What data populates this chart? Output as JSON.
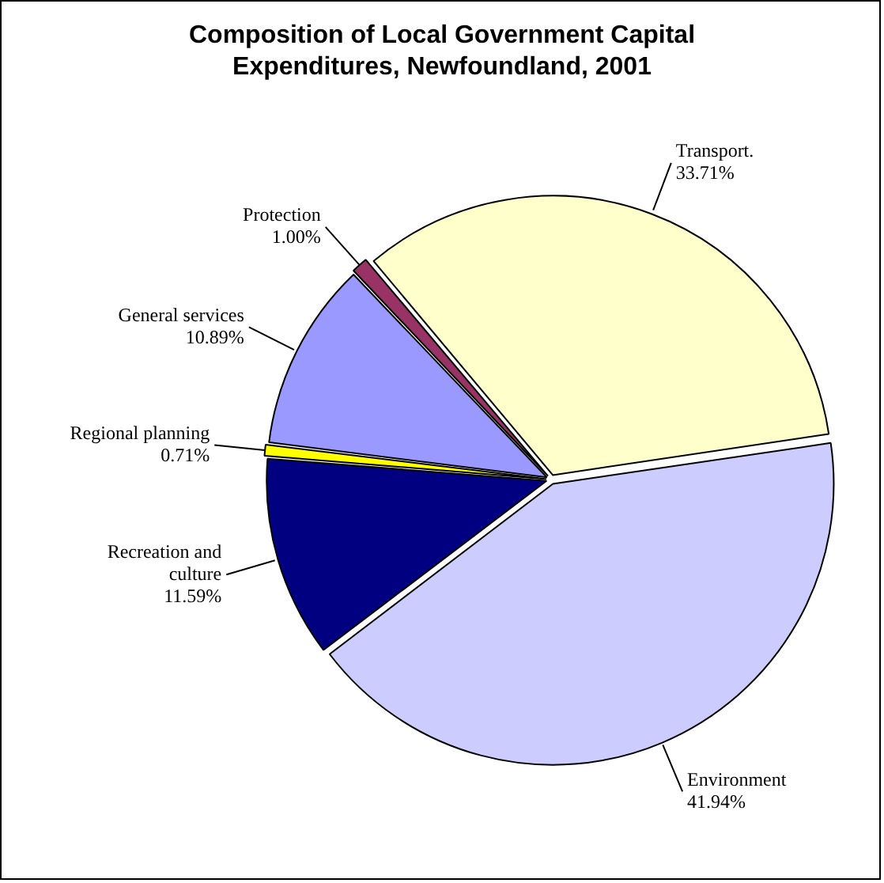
{
  "chart_data": {
    "type": "pie",
    "title": "Composition of Local Government Capital Expenditures, Newfoundland, 2001",
    "categories": [
      "Transport.",
      "Environment",
      "Recreation and culture",
      "Regional planning",
      "General services",
      "Protection"
    ],
    "values": [
      33.71,
      41.94,
      11.59,
      0.71,
      10.89,
      1.0
    ],
    "value_labels": [
      "33.71%",
      "41.94%",
      "11.59%",
      "0.71%",
      "10.89%",
      "1.00%"
    ],
    "colors": [
      "#ffffcc",
      "#ccccff",
      "#000080",
      "#ffff00",
      "#9999ff",
      "#993366"
    ],
    "legend": false
  }
}
